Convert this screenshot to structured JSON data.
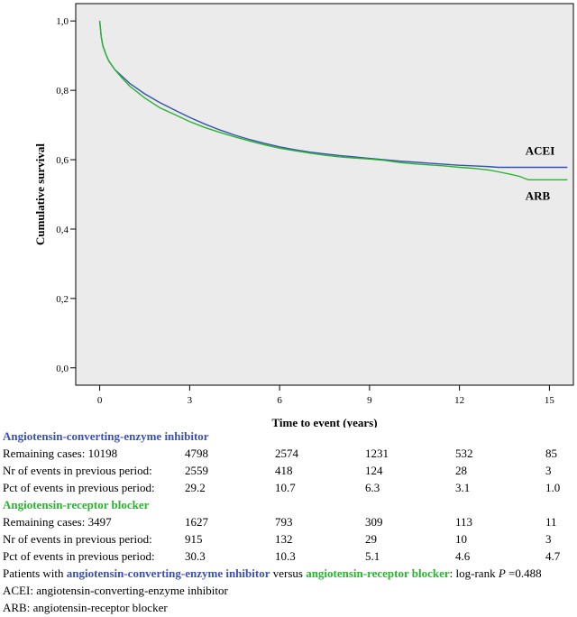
{
  "chart_data": {
    "type": "line",
    "step": true,
    "title": "",
    "xlabel": "Time to event (years)",
    "ylabel": "Cumulative survival",
    "xlim": [
      -0.8,
      15.8
    ],
    "ylim": [
      -0.05,
      1.05
    ],
    "xticks": [
      0,
      3,
      6,
      9,
      12,
      15
    ],
    "xtick_labels": [
      "0",
      "3",
      "6",
      "9",
      "12",
      "15"
    ],
    "yticks": [
      0.0,
      0.2,
      0.4,
      0.6,
      0.8,
      1.0
    ],
    "ytick_labels": [
      "0,0",
      "0,2",
      "0,4",
      "0,6",
      "0,8",
      "1,0"
    ],
    "background": "#ebebeb",
    "series": [
      {
        "name": "ACEI",
        "color": "#3a50b0",
        "x": [
          0,
          0.05,
          0.1,
          0.2,
          0.3,
          0.5,
          0.75,
          1.0,
          1.5,
          2.0,
          2.5,
          3.0,
          3.5,
          4.0,
          4.5,
          5.0,
          5.5,
          6.0,
          6.5,
          7.0,
          7.5,
          8.0,
          8.5,
          9.0,
          9.5,
          10.0,
          10.5,
          11.0,
          11.5,
          12.0,
          12.5,
          13.0,
          13.3,
          14.0,
          15.0,
          15.6
        ],
        "y": [
          1.0,
          0.955,
          0.93,
          0.905,
          0.885,
          0.86,
          0.84,
          0.82,
          0.79,
          0.765,
          0.743,
          0.722,
          0.703,
          0.686,
          0.671,
          0.658,
          0.647,
          0.637,
          0.629,
          0.622,
          0.617,
          0.612,
          0.608,
          0.604,
          0.6,
          0.596,
          0.593,
          0.59,
          0.587,
          0.584,
          0.582,
          0.58,
          0.578,
          0.578,
          0.578,
          0.578
        ]
      },
      {
        "name": "ARB",
        "color": "#27b52d",
        "x": [
          0,
          0.05,
          0.1,
          0.2,
          0.3,
          0.5,
          0.75,
          1.0,
          1.5,
          2.0,
          2.5,
          3.0,
          3.5,
          4.0,
          4.5,
          5.0,
          5.5,
          6.0,
          6.5,
          7.0,
          7.5,
          8.0,
          8.5,
          9.0,
          9.5,
          10.0,
          10.5,
          11.0,
          11.5,
          12.0,
          12.5,
          13.0,
          13.3,
          13.7,
          14.0,
          14.3,
          15.0,
          15.6
        ],
        "y": [
          1.0,
          0.955,
          0.93,
          0.905,
          0.885,
          0.86,
          0.835,
          0.812,
          0.778,
          0.75,
          0.73,
          0.71,
          0.693,
          0.679,
          0.666,
          0.654,
          0.643,
          0.633,
          0.626,
          0.619,
          0.613,
          0.608,
          0.605,
          0.602,
          0.598,
          0.592,
          0.588,
          0.585,
          0.582,
          0.578,
          0.575,
          0.57,
          0.565,
          0.558,
          0.552,
          0.542,
          0.542,
          0.542
        ]
      }
    ],
    "annotations": [
      "ACEI",
      "ARB"
    ]
  },
  "table": {
    "acei_header": "Angiotensin-converting-enzyme inhibitor",
    "acei_rows": [
      [
        "Remaining cases: 10198",
        "4798",
        "2574",
        "1231",
        "532",
        "85"
      ],
      [
        "Nr of events in previous period:",
        "2559",
        "418",
        "124",
        "28",
        "3"
      ],
      [
        "Pct of events in previous period:",
        "29.2",
        "10.7",
        "6.3",
        "3.1",
        "1.0"
      ]
    ],
    "arb_header": "Angiotensin-receptor blocker",
    "arb_rows": [
      [
        "Remaining cases: 3497",
        "1627",
        "793",
        "309",
        "113",
        "11"
      ],
      [
        "Nr of events in previous period:",
        "915",
        "132",
        "29",
        "10",
        "3"
      ],
      [
        "Pct of events in previous period:",
        "30.3",
        "10.3",
        "5.1",
        "4.6",
        "4.7"
      ]
    ]
  },
  "footer": {
    "line1_prefix": "Patients with ",
    "line1_acei": "angiotensin-converting-enzyme inhibitor",
    "line1_mid": " versus ",
    "line1_arb": "angiotensin-receptor blocker",
    "line1_suffix": ": log-rank ",
    "line1_p": "P",
    "line1_value": " =0.488",
    "line2": "ACEI: angiotensin-converting-enzyme inhibitor",
    "line3": "ARB: angiotensin-receptor blocker"
  }
}
